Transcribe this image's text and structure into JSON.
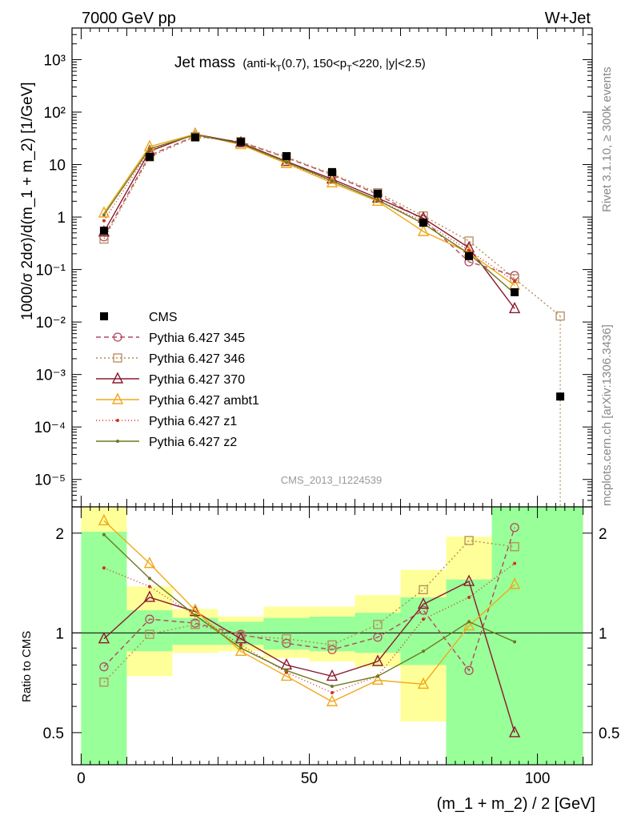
{
  "header": {
    "left": "7000 GeV pp",
    "right": "W+Jet",
    "title_main": "Jet mass",
    "title_sub": "(anti-k",
    "title_sub_T": "T",
    "title_sub_rest": "(0.7), 150<p",
    "title_sub_T2": "T",
    "title_sub_end": "<220, |y|<2.5)",
    "side_top": "Rivet 3.1.10, ≥ 300k events",
    "side_bottom": "mcplots.cern.ch [arXiv:1306.3436]",
    "watermark": "CMS_2013_I1224539"
  },
  "chart_data": [
    {
      "type": "line",
      "panel": "main",
      "ylabel": "1000/σ 2dσ)/d(m_1 + m_2) [1/GeV]",
      "yscale": "log",
      "ylim": [
        3e-06,
        4000
      ],
      "xlim": [
        -2,
        112
      ],
      "y_tick_labels": [
        "10⁻⁵",
        "10⁻⁴",
        "10⁻³",
        "10⁻²",
        "10⁻¹",
        "1",
        "10",
        "10²",
        "10³"
      ],
      "x": [
        5,
        15,
        25,
        35,
        45,
        55,
        65,
        75,
        85,
        95,
        105
      ],
      "cms": [
        0.55,
        14,
        33,
        27,
        14.5,
        7.2,
        2.8,
        0.78,
        0.18,
        0.037,
        0.00038
      ],
      "series": [
        {
          "name": "Pythia 6.427 345",
          "color": "#b14a5e",
          "dash": "6,4",
          "marker": "circle",
          "values": [
            0.42,
            15,
            35,
            27,
            13.5,
            6.4,
            2.7,
            0.9,
            0.14,
            0.077,
            null
          ]
        },
        {
          "name": "Pythia 6.427 346",
          "color": "#b48c5a",
          "dash": "2,3",
          "marker": "square",
          "values": [
            0.38,
            14,
            34,
            27.5,
            14,
            6.6,
            2.9,
            1.05,
            0.35,
            0.067,
            0.013
          ]
        },
        {
          "name": "Pythia 6.427 370",
          "color": "#8b1a2e",
          "dash": "",
          "marker": "triangle",
          "values": [
            0.52,
            18,
            38,
            26,
            11.5,
            5.3,
            2.3,
            0.95,
            0.26,
            0.018,
            null
          ]
        },
        {
          "name": "Pythia 6.427 ambt1",
          "color": "#f0a818",
          "dash": "",
          "marker": "triangle",
          "values": [
            1.2,
            22,
            38,
            24,
            10.5,
            4.5,
            2.0,
            0.53,
            0.21,
            0.05,
            null
          ]
        },
        {
          "name": "Pythia 6.427 z1",
          "color": "#d03020",
          "dash": "1,3",
          "marker": "dot",
          "values": [
            0.85,
            19,
            37,
            25,
            11,
            4.8,
            2.1,
            0.82,
            0.23,
            0.06,
            null
          ]
        },
        {
          "name": "Pythia 6.427 z2",
          "color": "#6e7820",
          "dash": "",
          "marker": "dot",
          "values": [
            1.1,
            20,
            37,
            25,
            11.2,
            4.9,
            2.1,
            0.75,
            0.2,
            0.035,
            null
          ]
        }
      ],
      "legend_title": "CMS"
    },
    {
      "type": "line",
      "panel": "ratio",
      "ylabel": "Ratio to CMS",
      "xlabel": "(m_1 + m_2) / 2 [GeV]",
      "yscale": "log",
      "ylim": [
        0.4,
        2.4
      ],
      "x_tick_labels": [
        "0",
        "50",
        "100"
      ],
      "y_tick_labels": [
        "0.5",
        "1",
        "2"
      ],
      "bins": [
        [
          0,
          10
        ],
        [
          10,
          20
        ],
        [
          20,
          30
        ],
        [
          30,
          40
        ],
        [
          40,
          50
        ],
        [
          50,
          60
        ],
        [
          60,
          70
        ],
        [
          70,
          80
        ],
        [
          80,
          90
        ],
        [
          90,
          100
        ],
        [
          100,
          110
        ]
      ],
      "band_green": [
        [
          0.4,
          2.02
        ],
        [
          0.88,
          1.17
        ],
        [
          0.92,
          1.11
        ],
        [
          0.92,
          1.08
        ],
        [
          0.89,
          1.11
        ],
        [
          0.88,
          1.12
        ],
        [
          0.87,
          1.15
        ],
        [
          0.8,
          1.28
        ],
        [
          0.4,
          1.45
        ],
        [
          0.4,
          2.4
        ],
        [
          0.4,
          2.4
        ]
      ],
      "band_yellow": [
        [
          0.4,
          2.4
        ],
        [
          0.74,
          1.38
        ],
        [
          0.87,
          1.18
        ],
        [
          0.88,
          1.12
        ],
        [
          0.84,
          1.2
        ],
        [
          0.82,
          1.2
        ],
        [
          0.79,
          1.3
        ],
        [
          0.54,
          1.55
        ],
        [
          0.4,
          1.95
        ],
        [
          0.4,
          2.4
        ],
        [
          0.4,
          2.4
        ]
      ],
      "x": [
        5,
        15,
        25,
        35,
        45,
        55,
        65,
        75,
        85,
        95
      ],
      "series": [
        {
          "name": "Pythia 6.427 345",
          "values": [
            0.79,
            1.1,
            1.07,
            0.99,
            0.93,
            0.89,
            0.97,
            1.17,
            0.77,
            2.08
          ]
        },
        {
          "name": "Pythia 6.427 346",
          "values": [
            0.71,
            0.99,
            1.06,
            0.98,
            0.96,
            0.92,
            1.06,
            1.35,
            1.9,
            1.82
          ]
        },
        {
          "name": "Pythia 6.427 370",
          "values": [
            0.96,
            1.28,
            1.16,
            0.96,
            0.8,
            0.74,
            0.82,
            1.22,
            1.43,
            0.5
          ]
        },
        {
          "name": "Pythia 6.427 ambt1",
          "values": [
            2.18,
            1.62,
            1.17,
            0.88,
            0.74,
            0.62,
            0.72,
            0.7,
            1.05,
            1.4
          ]
        },
        {
          "name": "Pythia 6.427 z1",
          "values": [
            1.57,
            1.38,
            1.13,
            0.92,
            0.76,
            0.66,
            0.74,
            1.1,
            1.28,
            1.62
          ]
        },
        {
          "name": "Pythia 6.427 z2",
          "values": [
            1.98,
            1.46,
            1.13,
            0.9,
            0.77,
            0.69,
            0.74,
            0.88,
            1.08,
            0.94
          ]
        }
      ]
    }
  ]
}
